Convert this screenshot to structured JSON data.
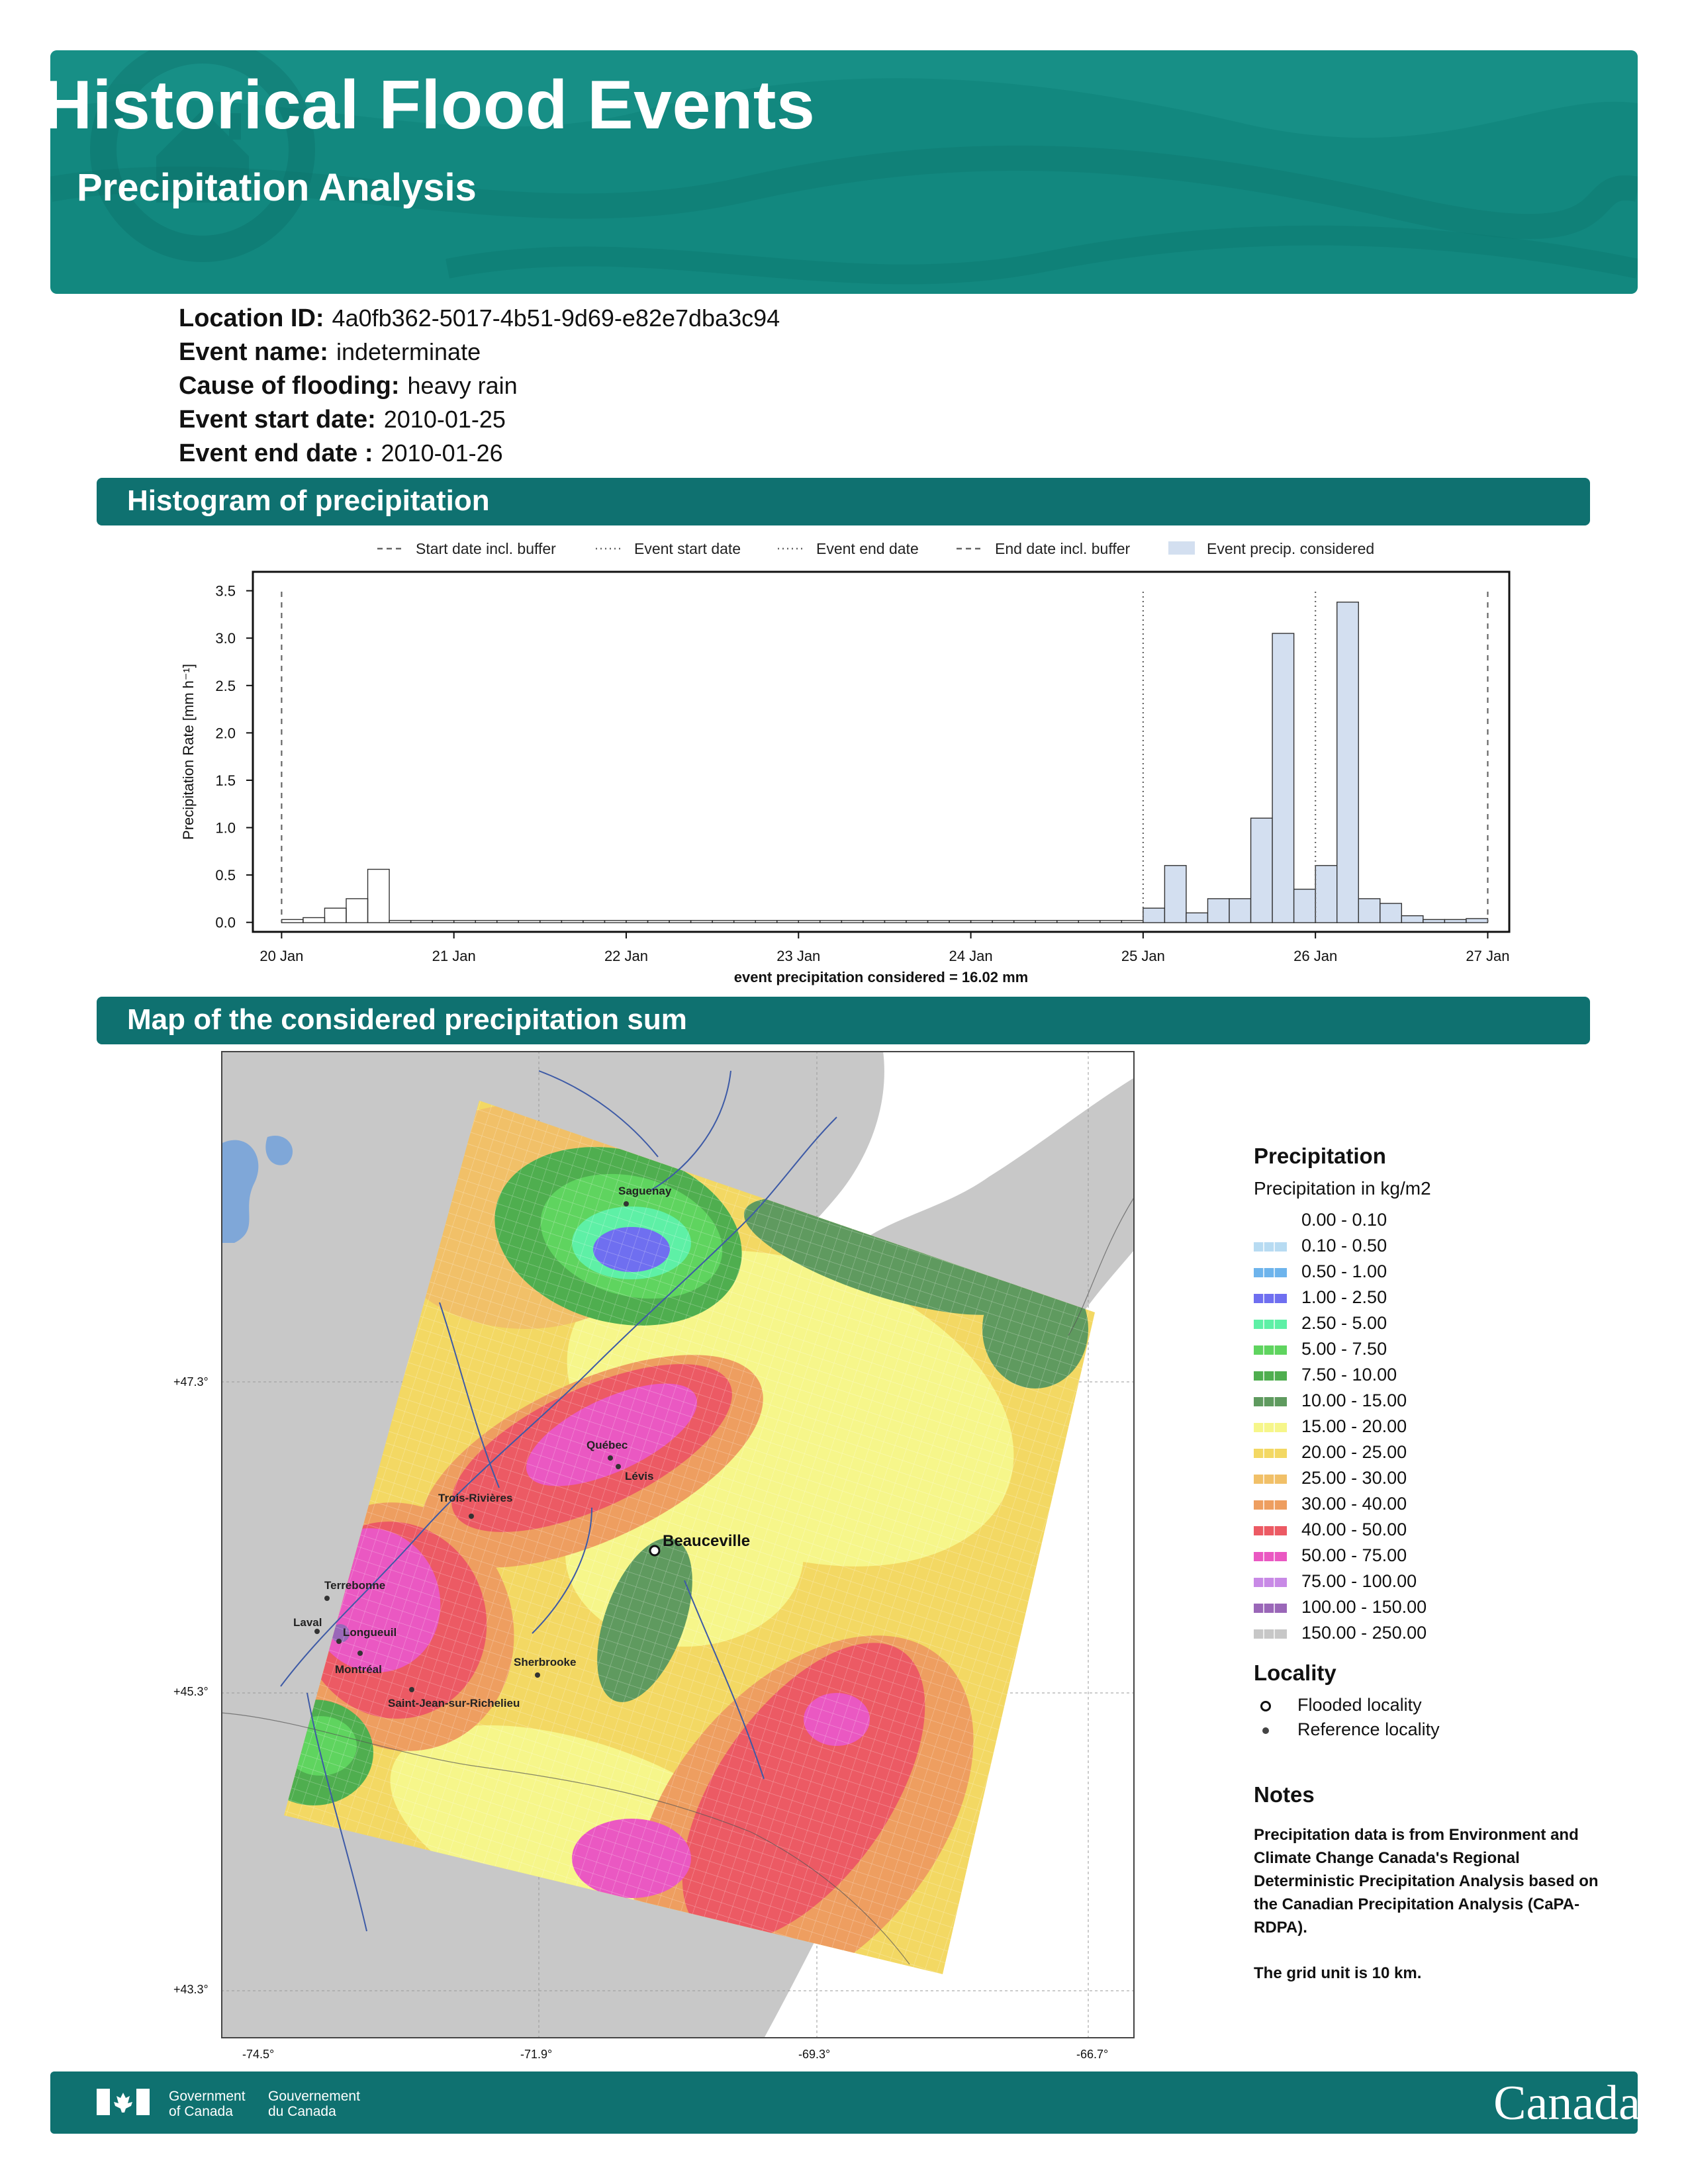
{
  "header": {
    "title": "Historical Flood Events",
    "subtitle": "Precipitation Analysis",
    "icon": "house-water-icon"
  },
  "info": [
    {
      "label": "Location ID:",
      "value": "4a0fb362-5017-4b51-9d69-e82e7dba3c94"
    },
    {
      "label": "Event name:",
      "value": "indeterminate"
    },
    {
      "label": "Cause of flooding:",
      "value": "heavy rain"
    },
    {
      "label": "Event start date:",
      "value": "2010-01-25"
    },
    {
      "label": "Event end date :",
      "value": "2010-01-26"
    }
  ],
  "sections": {
    "histogram": "Histogram of precipitation",
    "map": "Map of the considered precipitation sum"
  },
  "chart_data": {
    "type": "bar",
    "title": "",
    "xlabel": "event precipitation considered = 16.02 mm",
    "ylabel": "Precipitation Rate [mm h⁻¹]",
    "ylim": [
      -0.1,
      3.7
    ],
    "yticks": [
      "0.0",
      "0.5",
      "1.0",
      "1.5",
      "2.0",
      "2.5",
      "3.0",
      "3.5"
    ],
    "xlim": [
      "2010-01-19 20:00",
      "2010-01-27 03:00"
    ],
    "xticks": [
      "20 Jan",
      "21 Jan",
      "22 Jan",
      "23 Jan",
      "24 Jan",
      "25 Jan",
      "26 Jan",
      "27 Jan"
    ],
    "legend": [
      {
        "label": "Start date incl. buffer",
        "style": "dashed"
      },
      {
        "label": "Event start date",
        "style": "dotted"
      },
      {
        "label": "Event end date",
        "style": "dotted"
      },
      {
        "label": "End date incl. buffer",
        "style": "dashed"
      },
      {
        "label": "Event precip. considered",
        "style": "fill"
      }
    ],
    "legend_position": "top",
    "vlines": {
      "start_buffer": "2010-01-20 00:00",
      "event_start": "2010-01-25 00:00",
      "event_end": "2010-01-26 00:00",
      "end_buffer": "2010-01-27 00:00"
    },
    "x": [
      "2010-01-20 00:00",
      "2010-01-20 03:00",
      "2010-01-20 06:00",
      "2010-01-20 09:00",
      "2010-01-20 12:00",
      "2010-01-20 15:00",
      "2010-01-20 18:00",
      "2010-01-20 21:00",
      "2010-01-21 00:00",
      "2010-01-21 03:00",
      "2010-01-21 06:00",
      "2010-01-21 09:00",
      "2010-01-21 12:00",
      "2010-01-21 15:00",
      "2010-01-21 18:00",
      "2010-01-21 21:00",
      "2010-01-22 00:00",
      "2010-01-22 03:00",
      "2010-01-22 06:00",
      "2010-01-22 09:00",
      "2010-01-22 12:00",
      "2010-01-22 15:00",
      "2010-01-22 18:00",
      "2010-01-22 21:00",
      "2010-01-23 00:00",
      "2010-01-23 03:00",
      "2010-01-23 06:00",
      "2010-01-23 09:00",
      "2010-01-23 12:00",
      "2010-01-23 15:00",
      "2010-01-23 18:00",
      "2010-01-23 21:00",
      "2010-01-24 00:00",
      "2010-01-24 03:00",
      "2010-01-24 06:00",
      "2010-01-24 09:00",
      "2010-01-24 12:00",
      "2010-01-24 15:00",
      "2010-01-24 18:00",
      "2010-01-24 21:00",
      "2010-01-25 00:00",
      "2010-01-25 03:00",
      "2010-01-25 06:00",
      "2010-01-25 09:00",
      "2010-01-25 12:00",
      "2010-01-25 15:00",
      "2010-01-25 18:00",
      "2010-01-25 21:00",
      "2010-01-26 00:00",
      "2010-01-26 03:00",
      "2010-01-26 06:00",
      "2010-01-26 09:00",
      "2010-01-26 12:00",
      "2010-01-26 15:00",
      "2010-01-26 18:00",
      "2010-01-26 21:00"
    ],
    "series": [
      {
        "values": [
          0.03,
          0.05,
          0.15,
          0.25,
          0.56,
          0.02,
          0.02,
          0.02,
          0.02,
          0.02,
          0.02,
          0.02,
          0.02,
          0.02,
          0.02,
          0.02,
          0.02,
          0.02,
          0.02,
          0.02,
          0.02,
          0.02,
          0.02,
          0.02,
          0.02,
          0.02,
          0.02,
          0.02,
          0.02,
          0.02,
          0.02,
          0.02,
          0.02,
          0.02,
          0.02,
          0.02,
          0.02,
          0.02,
          0.02,
          0.02,
          0.15,
          0.6,
          0.1,
          0.25,
          0.25,
          1.1,
          3.05,
          0.35,
          0.6,
          3.38,
          0.25,
          0.2,
          0.07,
          0.03,
          0.03,
          0.04
        ],
        "considered_from_index": 40
      }
    ]
  },
  "map": {
    "lat_labels": [
      "+47.3°",
      "+45.3°",
      "+43.3°"
    ],
    "lon_labels": [
      "-74.5°",
      "-71.9°",
      "-69.3°",
      "-66.7°"
    ],
    "flooded": {
      "name": "Beauceville"
    },
    "reference": [
      {
        "name": "Saguenay"
      },
      {
        "name": "Québec"
      },
      {
        "name": "Lévis"
      },
      {
        "name": "Trois-Rivières"
      },
      {
        "name": "Terrebonne"
      },
      {
        "name": "Laval"
      },
      {
        "name": "Longueuil"
      },
      {
        "name": "Montréal"
      },
      {
        "name": "Sherbrooke"
      },
      {
        "name": "Saint-Jean-sur-Richelieu"
      }
    ]
  },
  "legend": {
    "title": "Precipitation",
    "subtitle": "Precipitation in kg/m2",
    "classes": [
      {
        "label": "0.00 - 0.10",
        "color": "#ffffff"
      },
      {
        "label": "0.10 - 0.50",
        "color": "#b7dbf2"
      },
      {
        "label": "0.50 - 1.00",
        "color": "#6eb4ec"
      },
      {
        "label": "1.00 - 2.50",
        "color": "#6f6ff0"
      },
      {
        "label": "2.50 - 5.00",
        "color": "#5ef0a6"
      },
      {
        "label": "5.00 - 7.50",
        "color": "#5fd45f"
      },
      {
        "label": "7.50 - 10.00",
        "color": "#4fae4f"
      },
      {
        "label": "10.00 - 15.00",
        "color": "#5f9a5f"
      },
      {
        "label": "15.00 - 20.00",
        "color": "#f6f68a"
      },
      {
        "label": "20.00 - 25.00",
        "color": "#f3d863"
      },
      {
        "label": "25.00 - 30.00",
        "color": "#f1c068"
      },
      {
        "label": "30.00 - 40.00",
        "color": "#ee9e60"
      },
      {
        "label": "40.00 - 50.00",
        "color": "#ec5a64"
      },
      {
        "label": "50.00 - 75.00",
        "color": "#ea58c2"
      },
      {
        "label": "75.00 - 100.00",
        "color": "#c88ae6"
      },
      {
        "label": "100.00 - 150.00",
        "color": "#9a67b8"
      },
      {
        "label": "150.00 - 250.00",
        "color": "#c7c7c7"
      }
    ],
    "locality_title": "Locality",
    "flooded_label": "Flooded locality",
    "reference_label": "Reference locality",
    "notes_title": "Notes",
    "notes_text": "Precipitation data is from Environment and Climate Change Canada's Regional Deterministic Precipitation Analysis based on the Canadian Precipitation Analysis (CaPA-RDPA).",
    "notes_grid": "The grid unit is 10 km."
  },
  "footer": {
    "gov_en_1": "Government",
    "gov_en_2": "of Canada",
    "gov_fr_1": "Gouvernement",
    "gov_fr_2": "du Canada",
    "wordmark": "Canada",
    "icon": "canada-flag-icon"
  }
}
